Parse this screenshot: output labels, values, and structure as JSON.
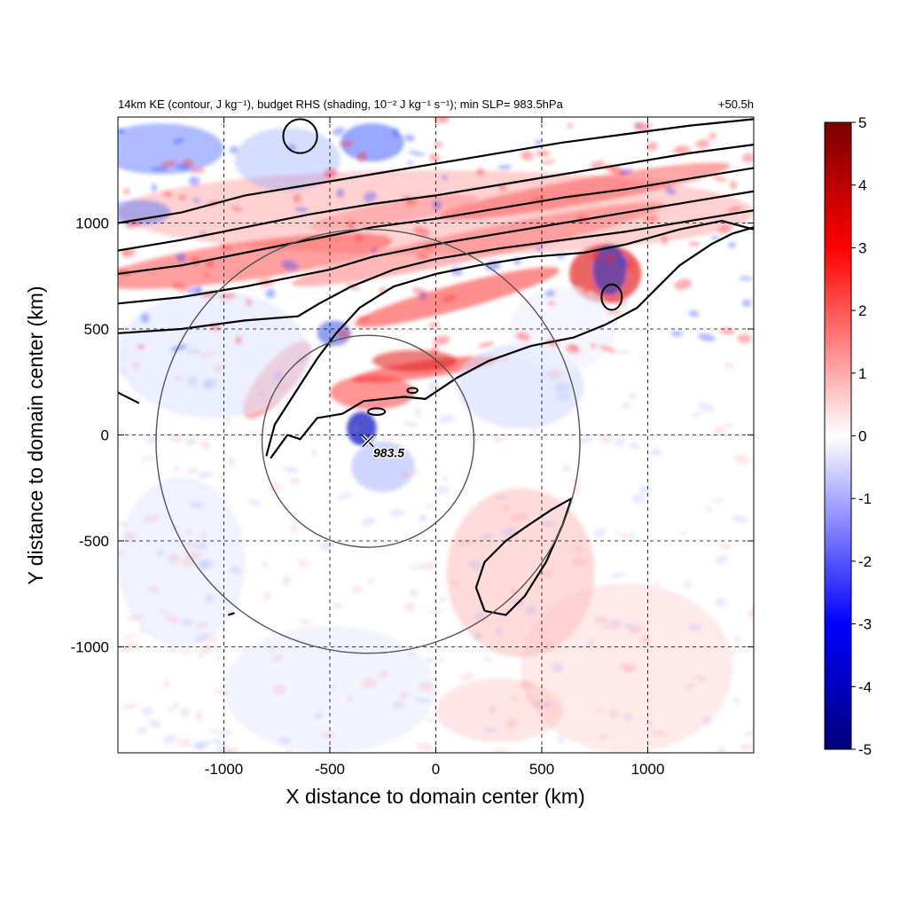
{
  "chart_data": {
    "type": "heatmap",
    "title": "14km KE (contour, J kg⁻¹), budget RHS (shading, 10⁻² J kg⁻¹ s⁻¹); min SLP= 983.5hPa",
    "time_label": "+50.5h",
    "xlabel": "X distance to domain center (km)",
    "ylabel": "Y distance to domain center (km)",
    "xlim": [
      -1500,
      1500
    ],
    "ylim": [
      -1500,
      1500
    ],
    "xticks": [
      -1000,
      -500,
      0,
      500,
      1000
    ],
    "yticks": [
      -1000,
      -500,
      0,
      500,
      1000
    ],
    "grid": true,
    "grid_style": "dashed",
    "colorbar": {
      "min": -5,
      "max": 5,
      "ticks": [
        5,
        4,
        3,
        2,
        1,
        0,
        -1,
        -2,
        -3,
        -4,
        -5
      ],
      "colormap": "blue-white-red",
      "colors": {
        "low": "#00007a",
        "mid_low": "#0000ff",
        "zero": "#ffffff",
        "mid_high": "#ff0000",
        "high": "#7a0000"
      }
    },
    "storm_center": {
      "x": -320,
      "y": -30,
      "label": "983.5",
      "marker": "x"
    },
    "range_rings_km": [
      500,
      1000
    ]
  }
}
